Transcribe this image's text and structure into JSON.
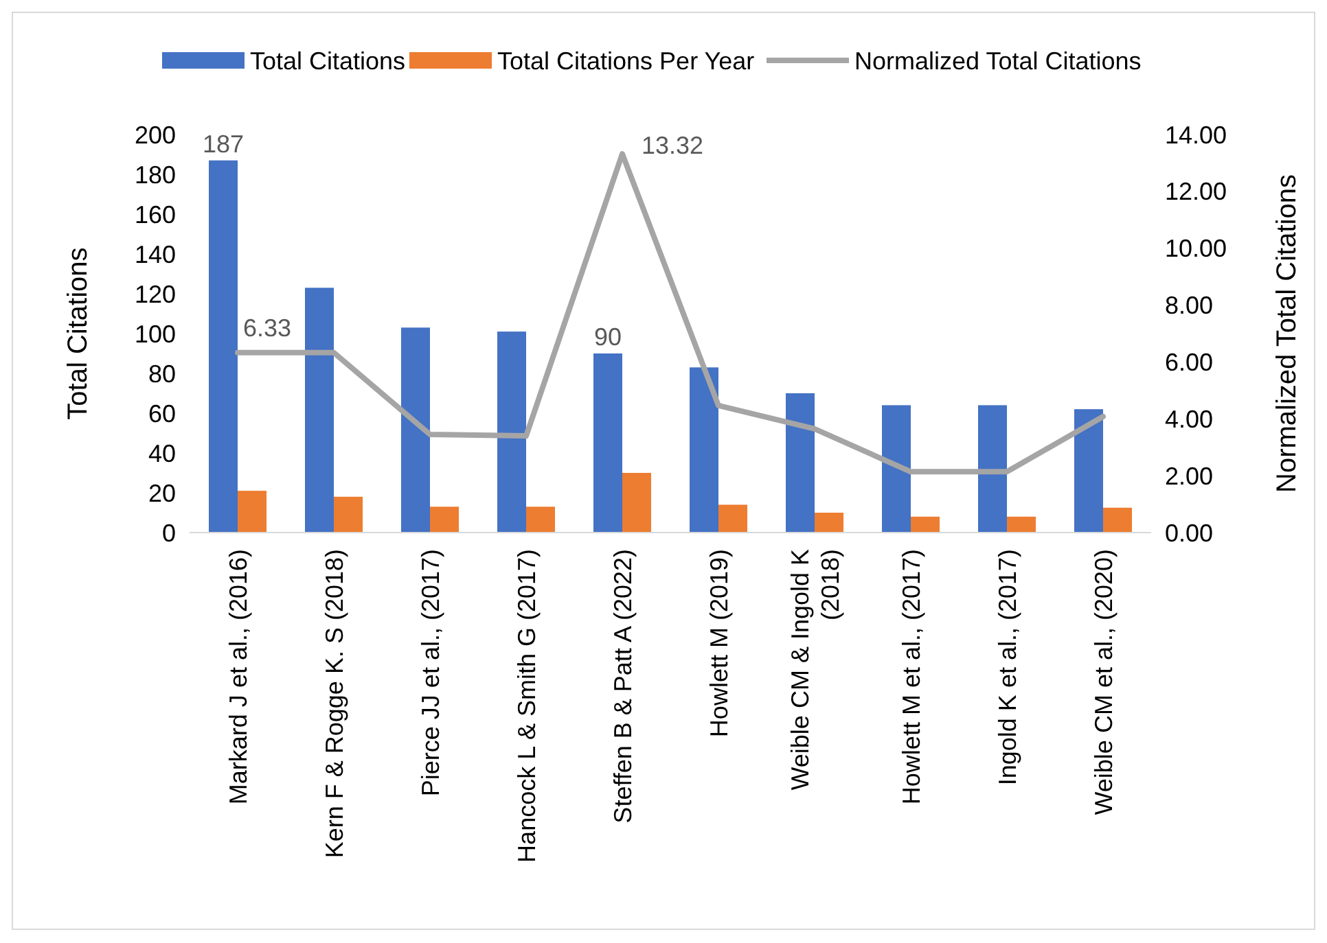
{
  "chart_data": {
    "type": "bar",
    "categories": [
      "Markard J et al., (2016)",
      "Kern F & Rogge K. S (2018)",
      "Pierce JJ et al., (2017)",
      "Hancock L & Smith G (2017)",
      "Steffen B & Patt A (2022)",
      "Howlett M (2019)",
      "Weible CM & Ingold K (2018)",
      "Howlett M et al., (2017)",
      "Ingold K et al., (2017)",
      "Weible CM et al., (2020)"
    ],
    "series": [
      {
        "name": "Total Citations",
        "color": "#4472c4",
        "values": [
          187,
          123,
          103,
          101,
          90,
          83,
          70,
          64,
          64,
          62
        ],
        "value_labels": [
          "187",
          null,
          null,
          null,
          "90",
          null,
          null,
          null,
          null,
          null
        ]
      },
      {
        "name": "Total Citations Per Year",
        "color": "#ed7d31",
        "values": [
          21,
          18,
          13,
          13,
          30,
          14,
          10,
          8,
          8,
          12.5
        ]
      },
      {
        "name": "Normalized Total Citations",
        "type": "line",
        "axis": "y2",
        "color": "#a5a5a5",
        "values": [
          6.33,
          6.33,
          3.45,
          3.4,
          13.32,
          4.47,
          3.65,
          2.14,
          2.14,
          4.08
        ],
        "value_labels": [
          "6.33",
          null,
          null,
          null,
          "13.32",
          null,
          null,
          null,
          null,
          null
        ]
      }
    ],
    "ylabel": "Total Citations",
    "y2label": "Normalized Total Citations",
    "ylim": [
      0,
      200
    ],
    "yticks": [
      0,
      20,
      40,
      60,
      80,
      100,
      120,
      140,
      160,
      180,
      200
    ],
    "y2lim": [
      0,
      14
    ],
    "y2ticks": [
      {
        "value": 0,
        "label": "0.00"
      },
      {
        "value": 2,
        "label": "2.00"
      },
      {
        "value": 4,
        "label": "4.00"
      },
      {
        "value": 6,
        "label": "6.00"
      },
      {
        "value": 8,
        "label": "8.00"
      },
      {
        "value": 10,
        "label": "10.00"
      },
      {
        "value": 12,
        "label": "12.00"
      },
      {
        "value": 14,
        "label": "14.00"
      }
    ],
    "legend": "top",
    "grid": false,
    "marker": "none"
  }
}
